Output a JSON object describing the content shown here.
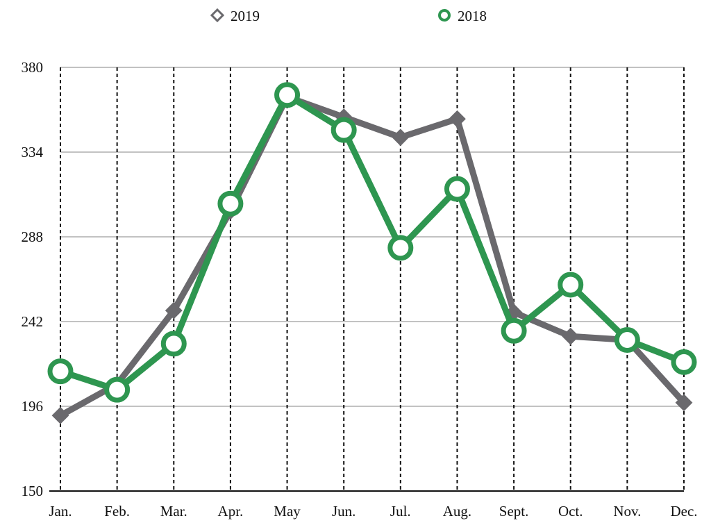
{
  "chart_data": {
    "type": "line",
    "title": "",
    "xlabel": "",
    "ylabel": "",
    "categories": [
      "Jan.",
      "Feb.",
      "Mar.",
      "Apr.",
      "May",
      "Jun.",
      "Jul.",
      "Aug.",
      "Sept.",
      "Oct.",
      "Nov.",
      "Dec."
    ],
    "ylim": [
      150,
      380
    ],
    "yticks": [
      "150",
      "196",
      "242",
      "288",
      "334",
      "380"
    ],
    "grid": {
      "horizontal": true,
      "vertical": "dotted"
    },
    "legend_position": "top",
    "series": [
      {
        "name": "2019",
        "marker": "diamond",
        "color": "#6a696d",
        "values": [
          191,
          208,
          248,
          302,
          364,
          353,
          342,
          352,
          247,
          234,
          232,
          198
        ]
      },
      {
        "name": "2018",
        "marker": "circle",
        "color": "#2e9650",
        "values": [
          215,
          205,
          230,
          306,
          365,
          346,
          282,
          314,
          237,
          262,
          232,
          220
        ]
      }
    ]
  }
}
